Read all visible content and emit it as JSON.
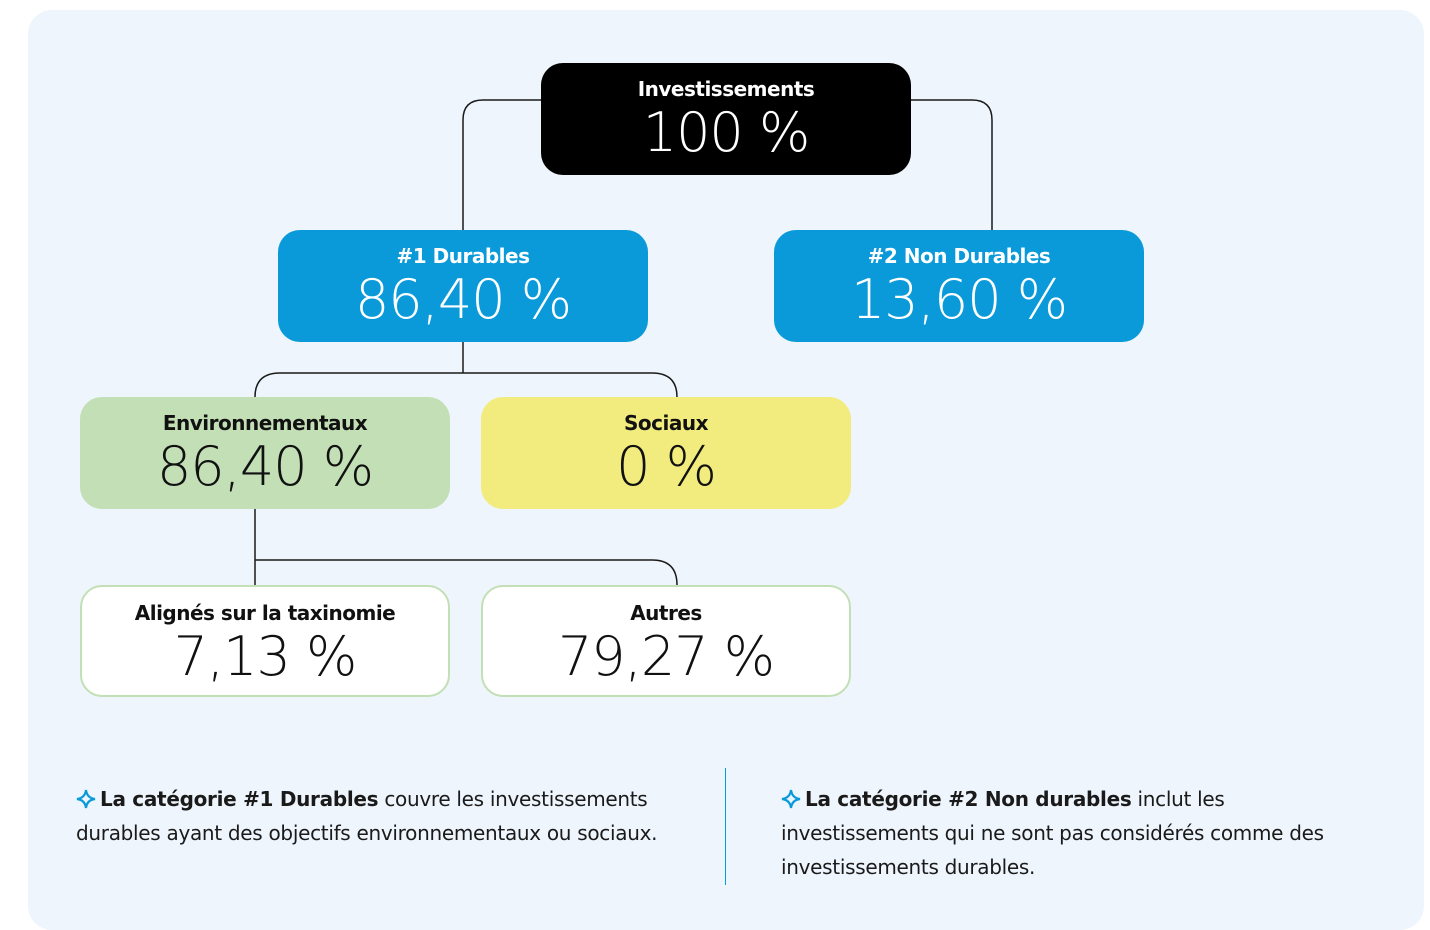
{
  "nodes": [
    {
      "label": "Investissements",
      "value": "100 %"
    },
    {
      "label": "#1 Durables",
      "value": "86,40 %"
    },
    {
      "label": "#2 Non Durables",
      "value": "13,60 %"
    },
    {
      "label": "Environnementaux",
      "value": "86,40 %"
    },
    {
      "label": "Sociaux",
      "value": "0 %"
    },
    {
      "label": "Alignés sur la taxinomie",
      "value": "7,13 %"
    },
    {
      "label": "Autres",
      "value": "79,27 %"
    }
  ],
  "notes": [
    {
      "bold": "La catégorie #1 Durables",
      "text": "couvre les investissements durables ayant des objectifs environnementaux ou sociaux."
    },
    {
      "bold": "La catégorie #2 Non durables",
      "text": "inclut les investissements qui ne sont pas considérés comme des investissements durables."
    }
  ]
}
